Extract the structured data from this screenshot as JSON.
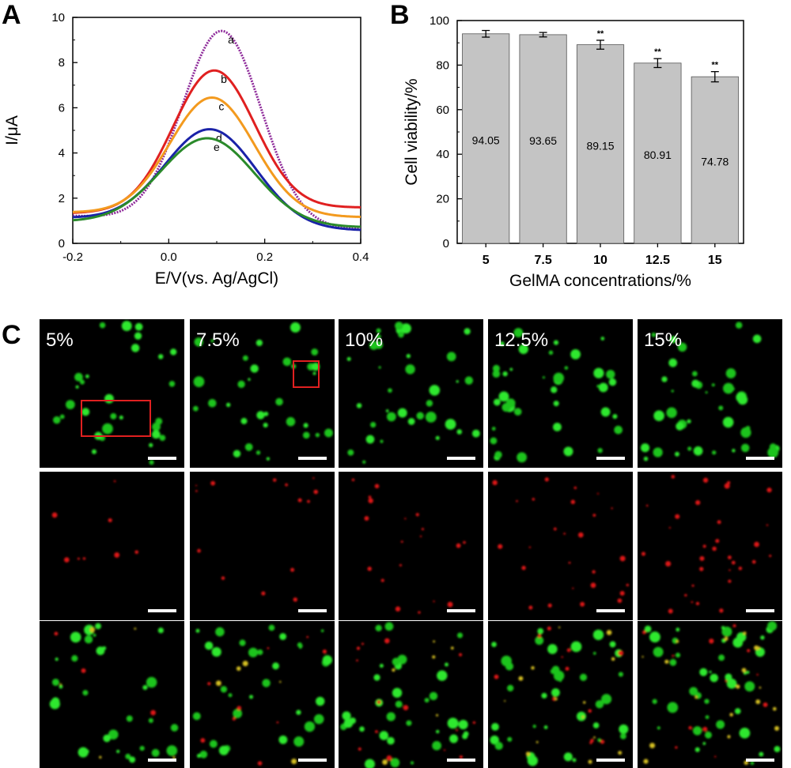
{
  "chart_data": [
    {
      "panel": "A",
      "type": "line",
      "xlabel": "E/V(vs. Ag/AgCl)",
      "ylabel": "I/μA",
      "xlim": [
        -0.2,
        0.4
      ],
      "ylim": [
        0,
        10
      ],
      "xticks": [
        "-0.2",
        "0.0",
        "0.2",
        "0.4"
      ],
      "yticks": [
        "0",
        "2",
        "4",
        "6",
        "8",
        "10"
      ],
      "series": [
        {
          "name": "a",
          "color": "#8e2a9a",
          "dotted": true,
          "base_left": 1.3,
          "base_right": 0.6,
          "peak_x": 0.11,
          "peak": 9.4,
          "width": 0.082
        },
        {
          "name": "b",
          "color": "#e02020",
          "dotted": false,
          "base_left": 1.3,
          "base_right": 1.6,
          "peak_x": 0.095,
          "peak": 7.65,
          "width": 0.085
        },
        {
          "name": "c",
          "color": "#f39a1e",
          "dotted": false,
          "base_left": 1.4,
          "base_right": 1.15,
          "peak_x": 0.09,
          "peak": 6.45,
          "width": 0.088
        },
        {
          "name": "d",
          "color": "#1a22a8",
          "dotted": false,
          "base_left": 1.2,
          "base_right": 0.55,
          "peak_x": 0.085,
          "peak": 5.05,
          "width": 0.095
        },
        {
          "name": "e",
          "color": "#2a8a2a",
          "dotted": false,
          "base_left": 1.0,
          "base_right": 0.7,
          "peak_x": 0.08,
          "peak": 4.65,
          "width": 0.098
        }
      ]
    },
    {
      "panel": "B",
      "type": "bar",
      "xlabel": "GelMA concentrations/%",
      "ylabel": "Cell viability/%",
      "ylim": [
        0,
        100
      ],
      "yticks": [
        "0",
        "20",
        "40",
        "60",
        "80",
        "100"
      ],
      "categories": [
        "5",
        "7.5",
        "10",
        "12.5",
        "15"
      ],
      "values": [
        94.05,
        93.65,
        89.15,
        80.91,
        74.78
      ],
      "value_labels": [
        "94.05",
        "93.65",
        "89.15",
        "80.91",
        "74.78"
      ],
      "errors": [
        1.5,
        1.0,
        2.0,
        2.0,
        2.3
      ],
      "significance": [
        "",
        "",
        "**",
        "**",
        "**"
      ],
      "bar_color": "#c4c4c4"
    }
  ],
  "panel_letters": {
    "a": "A",
    "b": "B",
    "c": "C"
  },
  "micrographs": {
    "concentration_labels": [
      "5%",
      "7.5%",
      "10%",
      "12.5%",
      "15%"
    ],
    "rows": [
      "green",
      "red",
      "merged"
    ]
  }
}
